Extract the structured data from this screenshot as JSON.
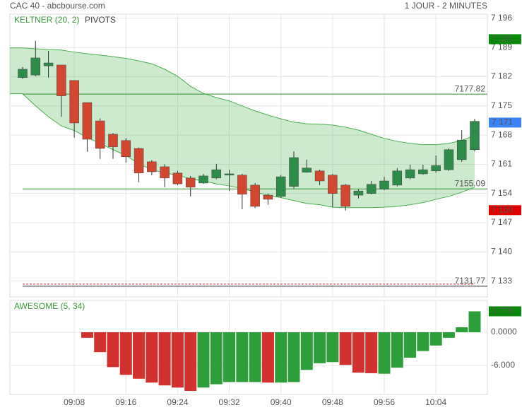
{
  "header": {
    "left": "CAC 40 - abcbourse.com",
    "right": "1 JOUR - 2 MINUTES"
  },
  "chart_data": [
    {
      "type": "candlestick",
      "legend": [
        {
          "label": "KELTNER (20, 2)",
          "color": "#3a9a3a"
        },
        {
          "label": "PIVOTS",
          "color": "#444444"
        }
      ],
      "categories": [
        null,
        null,
        null,
        null,
        "09:08",
        null,
        null,
        null,
        "09:16",
        null,
        null,
        null,
        "09:24",
        null,
        null,
        null,
        "09:32",
        null,
        null,
        null,
        "09:40",
        null,
        null,
        null,
        "09:48",
        null,
        null,
        null,
        "09:56",
        null,
        null,
        null,
        "10:04",
        null,
        null,
        null
      ],
      "open": [
        7181.8,
        7182.4,
        7184.6,
        7184.8,
        7181.1,
        7175.8,
        7171.4,
        7168.2,
        7166.7,
        7164.8,
        7161.6,
        7160.4,
        7158.9,
        7157.7,
        7156.5,
        7157.7,
        7158.4,
        7158.4,
        7156.0,
        7153.6,
        7153.3,
        7155.7,
        7159.1,
        7159.4,
        7158.4,
        7156.0,
        7153.6,
        7154.0,
        7155.0,
        7156.0,
        7157.7,
        7158.7,
        7159.4,
        7159.7,
        7162.1,
        7164.5
      ],
      "high": [
        7184.3,
        7190.6,
        7188.2,
        7184.8,
        7181.1,
        7175.8,
        7172.0,
        7168.5,
        7167.3,
        7165.0,
        7162.0,
        7161.0,
        7159.4,
        7158.2,
        7158.7,
        7161.1,
        7159.7,
        7158.7,
        7156.5,
        7154.0,
        7158.4,
        7164.1,
        7162.1,
        7159.7,
        7158.7,
        7156.3,
        7155.0,
        7157.0,
        7158.0,
        7160.1,
        7160.9,
        7160.9,
        7163.1,
        7164.8,
        7169.2,
        7171.9
      ],
      "low": [
        7181.5,
        7182.1,
        7181.8,
        7172.4,
        7167.4,
        7164.0,
        7162.3,
        7162.3,
        7161.4,
        7156.7,
        7158.4,
        7155.5,
        7156.0,
        7153.3,
        7156.3,
        7157.4,
        7154.6,
        7150.2,
        7150.5,
        7151.3,
        7153.0,
        7155.2,
        7159.0,
        7156.0,
        7150.7,
        7149.9,
        7152.8,
        7153.8,
        7154.8,
        7155.7,
        7157.4,
        7158.5,
        7159.0,
        7159.4,
        7161.6,
        7164.1
      ],
      "close": [
        7183.8,
        7186.5,
        7185.3,
        7177.4,
        7170.9,
        7167.0,
        7164.8,
        7165.2,
        7162.8,
        7158.9,
        7159.2,
        7157.7,
        7156.3,
        7155.5,
        7158.2,
        7159.7,
        7158.7,
        7153.8,
        7150.9,
        7152.6,
        7158.0,
        7162.6,
        7160.1,
        7157.0,
        7154.0,
        7150.9,
        7154.6,
        7156.2,
        7157.0,
        7159.4,
        7159.7,
        7159.7,
        7160.7,
        7164.5,
        7166.8,
        7171.3
      ],
      "up_color": "#2e8b4a",
      "down_color": "#d2472f",
      "band_upper": [
        7188.9,
        7188.7,
        7188.5,
        7188.4,
        7187.9,
        7187.5,
        7187.2,
        7186.8,
        7186.4,
        7185.8,
        7185.1,
        7183.8,
        7182.1,
        7179.7,
        7178.0,
        7177.0,
        7176.2,
        7175.0,
        7173.8,
        7172.8,
        7171.9,
        7171.1,
        7170.7,
        7170.6,
        7170.4,
        7169.9,
        7169.2,
        7168.2,
        7167.2,
        7166.5,
        7166.0,
        7165.7,
        7165.7,
        7166.0,
        7166.7,
        7167.9
      ],
      "band_lower": [
        7177.9,
        7175.0,
        7172.4,
        7170.2,
        7169.1,
        7167.4,
        7166.0,
        7164.5,
        7163.1,
        7161.1,
        7159.7,
        7158.9,
        7158.4,
        7157.5,
        7157.0,
        7156.3,
        7155.8,
        7155.2,
        7154.3,
        7153.6,
        7153.0,
        7152.3,
        7151.6,
        7151.3,
        7150.7,
        7150.6,
        7150.6,
        7150.6,
        7150.7,
        7150.9,
        7151.3,
        7151.8,
        7152.6,
        7153.3,
        7154.3,
        7155.5
      ],
      "band_color": "#4caf50",
      "pivots": [
        {
          "value": 7177.82,
          "color": "#2f8f2f"
        },
        {
          "value": 7155.09,
          "color": "#2f8f2f"
        },
        {
          "value": 7131.77,
          "color": "#333333"
        }
      ],
      "badges": [
        {
          "value": 7191,
          "label": "7 191",
          "color": "#0a8a0a"
        },
        {
          "value": 7171,
          "label": "7 171",
          "color": "#3b82f6"
        },
        {
          "value": 7150,
          "label": "7 150",
          "color": "#e00000"
        }
      ],
      "ylim": [
        7129.2,
        7197
      ],
      "yticks": [
        {
          "value": 7196,
          "label": "7 196"
        },
        {
          "value": 7189,
          "label": "7 189"
        },
        {
          "value": 7182,
          "label": "7 182"
        },
        {
          "value": 7175,
          "label": "7 175"
        },
        {
          "value": 7168,
          "label": "7 168"
        },
        {
          "value": 7161,
          "label": "7 161"
        },
        {
          "value": 7154,
          "label": "7 154"
        },
        {
          "value": 7147,
          "label": "7 147"
        },
        {
          "value": 7140,
          "label": "7 140"
        },
        {
          "value": 7133,
          "label": "7 133"
        }
      ],
      "grid": true
    },
    {
      "type": "bar",
      "title": "AWESOME (5, 34)",
      "values": [
        null,
        null,
        null,
        null,
        null,
        -1.0,
        -3.6,
        -6.3,
        -7.7,
        -8.4,
        -9.1,
        -9.6,
        -10.0,
        -10.6,
        -10.0,
        -9.4,
        -9.0,
        -9.0,
        -9.0,
        -9.1,
        -9.1,
        -9.0,
        -6.8,
        -5.6,
        -5.4,
        -5.9,
        -7.3,
        -7.4,
        -7.5,
        -6.4,
        -4.6,
        -3.4,
        -2.4,
        -1.0,
        0.9,
        3.779
      ],
      "colors": [
        null,
        null,
        null,
        null,
        null,
        "#d33030",
        "#d33030",
        "#d33030",
        "#d33030",
        "#d33030",
        "#d33030",
        "#d33030",
        "#d33030",
        "#d33030",
        "#2e9e3a",
        "#2e9e3a",
        "#2e9e3a",
        "#2e9e3a",
        "#2e9e3a",
        "#d33030",
        "#2e9e3a",
        "#2e9e3a",
        "#2e9e3a",
        "#2e9e3a",
        "#2e9e3a",
        "#d33030",
        "#d33030",
        "#d33030",
        "#2e9e3a",
        "#2e9e3a",
        "#2e9e3a",
        "#2e9e3a",
        "#2e9e3a",
        "#2e9e3a",
        "#2e9e3a",
        "#2e9e3a"
      ],
      "last_value_label": "3.779",
      "badge_color": "#0a8a0a",
      "ylim": [
        -11.24,
        5.75
      ],
      "yticks": [
        {
          "value": 0,
          "label": "0.0000"
        },
        {
          "value": -6,
          "label": "-6.000"
        }
      ],
      "grid": true
    }
  ]
}
